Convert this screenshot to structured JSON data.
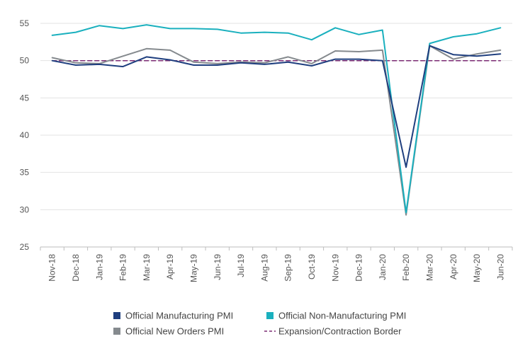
{
  "chart_data": {
    "type": "line",
    "title": "",
    "xlabel": "",
    "ylabel": "",
    "ylim": [
      25,
      55
    ],
    "yticks": [
      25,
      30,
      35,
      40,
      45,
      50,
      55
    ],
    "grid": "horizontal",
    "legend_position": "bottom",
    "categories": [
      "Nov-18",
      "Dec-18",
      "Jan-19",
      "Feb-19",
      "Mar-19",
      "Apr-19",
      "May-19",
      "Jun-19",
      "Jul-19",
      "Aug-19",
      "Sep-19",
      "Oct-19",
      "Nov-19",
      "Dec-19",
      "Jan-20",
      "Feb-20",
      "Mar-20",
      "Apr-20",
      "May-20",
      "Jun-20"
    ],
    "series": [
      {
        "name": "Official Manufacturing PMI",
        "color": "#1f3f7f",
        "style": "solid",
        "values": [
          50.0,
          49.4,
          49.5,
          49.2,
          50.5,
          50.1,
          49.4,
          49.4,
          49.7,
          49.5,
          49.8,
          49.3,
          50.2,
          50.2,
          50.0,
          35.7,
          52.0,
          50.8,
          50.6,
          50.9
        ]
      },
      {
        "name": "Official Non-Manufacturing PMI",
        "color": "#1ab0be",
        "style": "solid",
        "values": [
          53.4,
          53.8,
          54.7,
          54.3,
          54.8,
          54.3,
          54.3,
          54.2,
          53.7,
          53.8,
          53.7,
          52.8,
          54.4,
          53.5,
          54.1,
          29.6,
          52.3,
          53.2,
          53.6,
          54.4
        ]
      },
      {
        "name": "Official New Orders PMI",
        "color": "#858a8e",
        "style": "solid",
        "values": [
          50.4,
          49.7,
          49.6,
          50.6,
          51.6,
          51.4,
          49.8,
          49.6,
          49.8,
          49.7,
          50.5,
          49.6,
          51.3,
          51.2,
          51.4,
          29.3,
          52.0,
          50.2,
          50.9,
          51.4
        ]
      },
      {
        "name": "Expansion/Contraction Border",
        "color": "#7b2b73",
        "style": "dashed",
        "values": [
          50,
          50,
          50,
          50,
          50,
          50,
          50,
          50,
          50,
          50,
          50,
          50,
          50,
          50,
          50,
          50,
          50,
          50,
          50,
          50
        ]
      }
    ],
    "legend": [
      {
        "label": "Official Manufacturing PMI",
        "color": "#1f3f7f",
        "marker": "square"
      },
      {
        "label": "Official Non-Manufacturing PMI",
        "color": "#1ab0be",
        "marker": "square"
      },
      {
        "label": "Official New Orders PMI",
        "color": "#858a8e",
        "marker": "square"
      },
      {
        "label": "Expansion/Contraction Border",
        "color": "#7b2b73",
        "marker": "dashed-line"
      }
    ]
  }
}
